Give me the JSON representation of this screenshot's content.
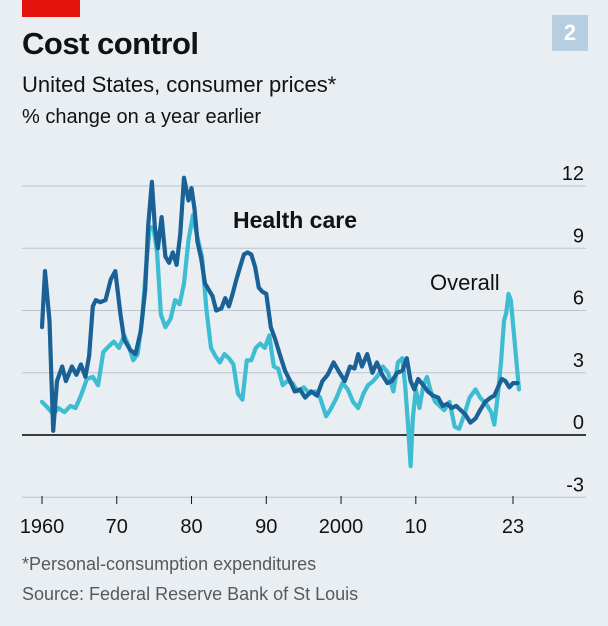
{
  "header": {
    "chart_number": "2",
    "title": "Cost control",
    "subtitle": "United States, consumer prices*",
    "unit": "% change on a year earlier"
  },
  "footer": {
    "note": "*Personal-consumption expenditures",
    "source": "Source: Federal Reserve Bank of St Louis"
  },
  "colors": {
    "health_care": "#1a6196",
    "overall": "#3ebcd2",
    "grid": "#b7c6cf",
    "zero_line": "#000000"
  },
  "chart_data": {
    "type": "line",
    "title": "Cost control",
    "subtitle": "United States, consumer prices*",
    "ylabel": "% change on a year earlier",
    "ylim": [
      -3,
      12
    ],
    "yticks": [
      -3,
      0,
      3,
      6,
      9,
      12
    ],
    "ytick_labels": [
      "-3",
      "0",
      "3",
      "6",
      "9",
      "12"
    ],
    "xlim": [
      1959,
      2027
    ],
    "xticks": [
      1960,
      1970,
      1980,
      1990,
      2000,
      2010,
      2023
    ],
    "xtick_labels": [
      "1960",
      "70",
      "80",
      "90",
      "2000",
      "10",
      "23"
    ],
    "grid": true,
    "series": [
      {
        "name": "Health care",
        "color": "#1a6196",
        "x": [
          1960,
          1960.4,
          1961,
          1961.5,
          1962,
          1962.7,
          1963.2,
          1964,
          1964.6,
          1965.2,
          1965.8,
          1966.3,
          1966.8,
          1967.2,
          1967.8,
          1968.5,
          1969.2,
          1969.8,
          1970.5,
          1971,
          1971.8,
          1972.5,
          1973.2,
          1973.8,
          1974.2,
          1974.7,
          1975.1,
          1975.5,
          1976,
          1976.5,
          1977,
          1977.5,
          1978,
          1978.5,
          1979,
          1979.6,
          1980,
          1980.4,
          1980.8,
          1981.3,
          1981.8,
          1982.3,
          1982.8,
          1983.3,
          1984,
          1984.5,
          1985,
          1985.5,
          1986,
          1986.5,
          1987,
          1987.5,
          1988,
          1988.5,
          1989,
          1989.5,
          1990,
          1990.6,
          1991.2,
          1991.8,
          1992.5,
          1993.2,
          1993.8,
          1994.5,
          1995.2,
          1996,
          1996.8,
          1997.5,
          1998.2,
          1999,
          1999.8,
          2000.5,
          2001.2,
          2001.8,
          2002.3,
          2002.8,
          2003.5,
          2004.2,
          2004.8,
          2005.5,
          2006.2,
          2006.8,
          2007.5,
          2008.2,
          2008.8,
          2009.3,
          2009.8,
          2010.3,
          2011,
          2011.6,
          2012.3,
          2013,
          2013.6,
          2014.2,
          2014.8,
          2015.4,
          2016,
          2016.6,
          2017.3,
          2018,
          2018.6,
          2019.3,
          2020,
          2020.5,
          2021,
          2021.5,
          2022,
          2022.5,
          2023,
          2023.6
        ],
        "values": [
          5.2,
          7.9,
          5.5,
          0.2,
          2.6,
          3.3,
          2.6,
          3.3,
          2.9,
          3.4,
          2.8,
          3.8,
          6.2,
          6.5,
          6.4,
          6.5,
          7.5,
          7.9,
          5.8,
          4.6,
          4.1,
          3.9,
          5.0,
          7.0,
          10.1,
          12.2,
          10.0,
          9.0,
          10.5,
          8.6,
          8.3,
          8.8,
          8.2,
          9.7,
          12.4,
          11.3,
          11.9,
          10.9,
          9.3,
          8.5,
          7.3,
          7.0,
          6.7,
          6.0,
          6.1,
          6.6,
          6.2,
          6.8,
          7.5,
          8.1,
          8.7,
          8.8,
          8.7,
          8.1,
          7.1,
          6.9,
          6.8,
          5.2,
          4.6,
          3.9,
          3.1,
          2.6,
          2.1,
          2.2,
          1.8,
          2.1,
          1.9,
          2.6,
          2.9,
          3.5,
          3.0,
          2.6,
          3.3,
          3.2,
          3.9,
          3.3,
          3.9,
          3.0,
          3.5,
          2.9,
          2.5,
          2.6,
          3.0,
          3.1,
          3.7,
          2.6,
          2.2,
          2.7,
          2.4,
          2.1,
          1.9,
          1.8,
          1.4,
          1.5,
          1.3,
          1.4,
          1.2,
          1.0,
          0.6,
          0.8,
          1.2,
          1.6,
          1.8,
          1.9,
          2.3,
          2.7,
          2.6,
          2.3,
          2.5,
          2.5
        ],
        "label": "Health care"
      },
      {
        "name": "Overall",
        "color": "#3ebcd2",
        "x": [
          1960,
          1960.8,
          1961.5,
          1962.2,
          1963,
          1963.8,
          1964.5,
          1965.2,
          1966,
          1966.8,
          1967.5,
          1968.2,
          1969,
          1969.6,
          1970.3,
          1971,
          1971.6,
          1972.2,
          1972.8,
          1973.4,
          1973.9,
          1974.4,
          1974.9,
          1975.4,
          1975.9,
          1976.5,
          1977.2,
          1977.8,
          1978.4,
          1979,
          1979.6,
          1980.2,
          1980.8,
          1981.4,
          1982,
          1982.6,
          1983.2,
          1983.8,
          1984.4,
          1985,
          1985.6,
          1986.2,
          1986.8,
          1987.4,
          1988,
          1988.6,
          1989.2,
          1989.8,
          1990.4,
          1991,
          1991.6,
          1992.2,
          1992.8,
          1993.5,
          1994.2,
          1995,
          1995.8,
          1996.5,
          1997.2,
          1998,
          1998.7,
          1999.4,
          2000.2,
          2000.9,
          2001.6,
          2002.3,
          2003,
          2003.6,
          2004.3,
          2005,
          2005.6,
          2006.3,
          2007,
          2007.6,
          2008.2,
          2008.6,
          2009,
          2009.3,
          2009.6,
          2010,
          2010.5,
          2011,
          2011.5,
          2012,
          2012.6,
          2013.2,
          2013.8,
          2014.5,
          2015.2,
          2015.8,
          2016.5,
          2017.2,
          2018,
          2018.6,
          2019.4,
          2020.1,
          2020.5,
          2021,
          2021.4,
          2021.8,
          2022.1,
          2022.4,
          2022.7,
          2023.1,
          2023.5,
          2023.8
        ],
        "values": [
          1.6,
          1.3,
          1.0,
          1.3,
          1.1,
          1.4,
          1.3,
          1.9,
          2.7,
          2.8,
          2.4,
          4.0,
          4.3,
          4.5,
          4.2,
          4.8,
          4.3,
          3.6,
          3.9,
          5.6,
          8.0,
          10.0,
          10.0,
          8.8,
          5.8,
          5.2,
          5.6,
          6.5,
          6.3,
          7.3,
          9.4,
          10.6,
          9.5,
          8.6,
          6.0,
          4.2,
          3.8,
          3.5,
          3.9,
          3.7,
          3.4,
          2.0,
          1.7,
          3.6,
          3.6,
          4.2,
          4.4,
          4.2,
          4.8,
          3.3,
          3.2,
          2.4,
          2.6,
          2.5,
          2.1,
          2.3,
          2.0,
          2.1,
          1.8,
          0.9,
          1.3,
          1.8,
          2.5,
          2.2,
          1.6,
          1.3,
          2.0,
          2.4,
          2.6,
          2.9,
          3.3,
          3.0,
          2.1,
          3.5,
          3.7,
          2.3,
          0.3,
          -1.5,
          0.8,
          2.2,
          1.3,
          2.4,
          2.8,
          2.1,
          1.6,
          1.4,
          1.2,
          1.6,
          0.4,
          0.3,
          1.0,
          1.8,
          2.2,
          1.8,
          1.5,
          1.1,
          0.5,
          2.0,
          3.5,
          5.5,
          5.9,
          6.8,
          6.5,
          5.0,
          3.4,
          2.2
        ],
        "label": "Overall"
      }
    ]
  }
}
